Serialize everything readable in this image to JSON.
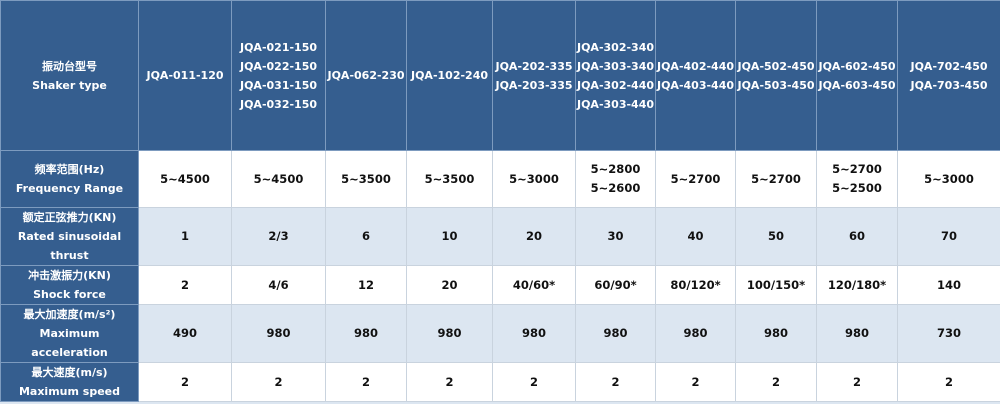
{
  "header": {
    "label_cn": "振动台型号",
    "label_en": "Shaker type",
    "models": [
      [
        "JQA-011-120"
      ],
      [
        "JQA-021-150",
        "JQA-022-150",
        "JQA-031-150",
        "JQA-032-150"
      ],
      [
        "JQA-062-230"
      ],
      [
        "JQA-102-240"
      ],
      [
        "JQA-202-335",
        "JQA-203-335"
      ],
      [
        "JQA-302-340",
        "JQA-303-340",
        "JQA-302-440",
        "JQA-303-440"
      ],
      [
        "JQA-402-440",
        "JQA-403-440"
      ],
      [
        "JQA-502-450",
        "JQA-503-450"
      ],
      [
        "JQA-602-450",
        "JQA-603-450"
      ],
      [
        "JQA-702-450",
        "JQA-703-450"
      ]
    ]
  },
  "rows": [
    {
      "label_cn": "频率范围(Hz)",
      "label_en": "Frequency Range",
      "values": [
        [
          "5~4500"
        ],
        [
          "5~4500"
        ],
        [
          "5~3500"
        ],
        [
          "5~3500"
        ],
        [
          "5~3000"
        ],
        [
          "5~2800",
          "5~2600"
        ],
        [
          "5~2700"
        ],
        [
          "5~2700"
        ],
        [
          "5~2700",
          "5~2500"
        ],
        [
          "5~3000"
        ]
      ]
    },
    {
      "label_cn": "额定正弦推力(KN)",
      "label_en": "Rated sinusoidal thrust",
      "values": [
        [
          "1"
        ],
        [
          "2/3"
        ],
        [
          "6"
        ],
        [
          "10"
        ],
        [
          "20"
        ],
        [
          "30"
        ],
        [
          "40"
        ],
        [
          "50"
        ],
        [
          "60"
        ],
        [
          "70"
        ]
      ]
    },
    {
      "label_cn": "冲击激振力(KN)",
      "label_en": "Shock force",
      "values": [
        [
          "2"
        ],
        [
          "4/6"
        ],
        [
          "12"
        ],
        [
          "20"
        ],
        [
          "40/60*"
        ],
        [
          "60/90*"
        ],
        [
          "80/120*"
        ],
        [
          "100/150*"
        ],
        [
          "120/180*"
        ],
        [
          "140"
        ]
      ]
    },
    {
      "label_cn": "最大加速度(m/s²)",
      "label_en": "Maximum acceleration",
      "values": [
        [
          "490"
        ],
        [
          "980"
        ],
        [
          "980"
        ],
        [
          "980"
        ],
        [
          "980"
        ],
        [
          "980"
        ],
        [
          "980"
        ],
        [
          "980"
        ],
        [
          "980"
        ],
        [
          "730"
        ]
      ]
    },
    {
      "label_cn": "最大速度(m/s)",
      "label_en": "Maximum speed",
      "values": [
        [
          "2"
        ],
        [
          "2"
        ],
        [
          "2"
        ],
        [
          "2"
        ],
        [
          "2"
        ],
        [
          "2"
        ],
        [
          "2"
        ],
        [
          "2"
        ],
        [
          "2"
        ],
        [
          "2"
        ]
      ]
    }
  ],
  "colors": {
    "header": "#355e8f",
    "stripe": "#dce6f1",
    "white": "#ffffff"
  }
}
